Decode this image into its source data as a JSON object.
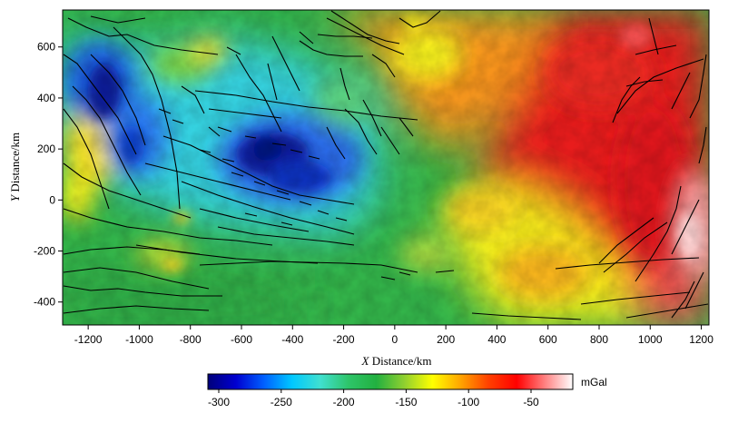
{
  "map": {
    "x_axis": {
      "title_var": "X",
      "title_rest": " Distance/km",
      "range": [
        -1300,
        1230
      ],
      "ticks": [
        -1200,
        -1000,
        -800,
        -600,
        -400,
        -200,
        0,
        200,
        400,
        600,
        800,
        1000,
        1200
      ],
      "tick_labels": [
        "-1200",
        "-1000",
        "-800",
        "-600",
        "-400",
        "-200",
        "0",
        "200",
        "400",
        "600",
        "800",
        "1000",
        "1200"
      ]
    },
    "y_axis": {
      "title_var": "Y",
      "title_rest": " Distance/km",
      "range": [
        -490,
        745
      ],
      "ticks": [
        600,
        400,
        200,
        0,
        -200,
        -400
      ],
      "tick_labels": [
        "600",
        "400",
        "200",
        "0",
        "-200",
        "-400"
      ]
    },
    "field_description_colors": {
      "west_blue_core": "#0a1e9c",
      "center_blue_core": "#06127a",
      "cyan": "#35d2e0",
      "green": "#33b54a",
      "yellow": "#f5f01e",
      "orange": "#f7941d",
      "red": "#e81c1c",
      "pale_red": "#f8b6b6"
    },
    "fault_color": "#000000"
  },
  "colorbar": {
    "unit_label": "mGal",
    "tick_labels": [
      "-300",
      "-250",
      "-200",
      "-150",
      "-100",
      "-50"
    ],
    "stops": [
      "#00007a",
      "#0000d0",
      "#0060ff",
      "#00c8ff",
      "#40e0d0",
      "#2ec56a",
      "#22b040",
      "#90d030",
      "#ffff00",
      "#ffa500",
      "#ff4000",
      "#ff0000",
      "#ff8080",
      "#ffffff"
    ]
  }
}
